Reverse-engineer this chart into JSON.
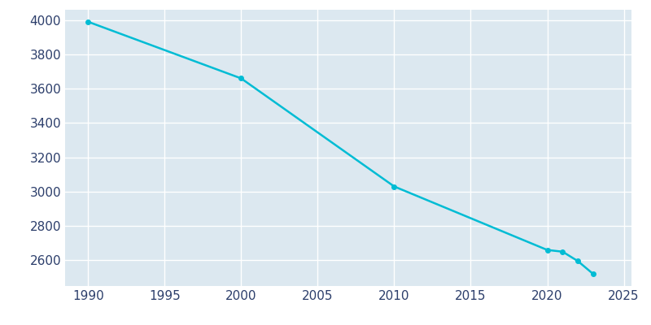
{
  "years": [
    1990,
    2000,
    2010,
    2020,
    2021,
    2022,
    2023
  ],
  "population": [
    3990,
    3660,
    3030,
    2660,
    2650,
    2595,
    2520
  ],
  "line_color": "#00BCD4",
  "marker": "o",
  "marker_size": 4,
  "plot_background_color": "#dce8f0",
  "figure_background_color": "#ffffff",
  "grid_color": "#ffffff",
  "tick_label_color": "#2c3e6b",
  "ylim": [
    2450,
    4060
  ],
  "xlim": [
    1988.5,
    2025.5
  ],
  "yticks": [
    2600,
    2800,
    3000,
    3200,
    3400,
    3600,
    3800,
    4000
  ],
  "xticks": [
    1990,
    1995,
    2000,
    2005,
    2010,
    2015,
    2020,
    2025
  ]
}
